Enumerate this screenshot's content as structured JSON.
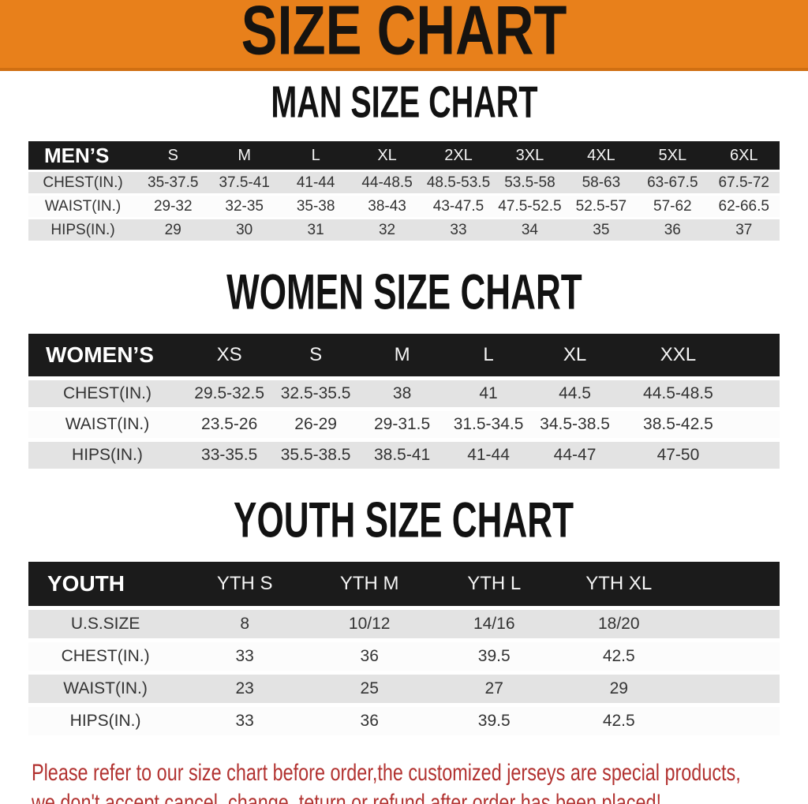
{
  "banner": {
    "title": "SIZE CHART"
  },
  "colors": {
    "banner_bg": "#E8801B",
    "table_header_bg": "#1b1b1b",
    "row_gray": "#e3e3e3",
    "row_white": "#fcfcfc",
    "disclaimer_red": "#b23230"
  },
  "sections": {
    "men": {
      "heading": "MAN SIZE CHART",
      "table": {
        "label": "MEN’S",
        "columns": [
          "S",
          "M",
          "L",
          "XL",
          "2XL",
          "3XL",
          "4XL",
          "5XL",
          "6XL"
        ],
        "rows": [
          {
            "label": "CHEST(IN.)",
            "values": [
              "35-37.5",
              "37.5-41",
              "41-44",
              "44-48.5",
              "48.5-53.5",
              "53.5-58",
              "58-63",
              "63-67.5",
              "67.5-72"
            ]
          },
          {
            "label": "WAIST(IN.)",
            "values": [
              "29-32",
              "32-35",
              "35-38",
              "38-43",
              "43-47.5",
              "47.5-52.5",
              "52.5-57",
              "57-62",
              "62-66.5"
            ]
          },
          {
            "label": "HIPS(IN.)",
            "values": [
              "29",
              "30",
              "31",
              "32",
              "33",
              "34",
              "35",
              "36",
              "37"
            ]
          }
        ]
      }
    },
    "women": {
      "heading": "WOMEN SIZE CHART",
      "table": {
        "label": "WOMEN’S",
        "columns": [
          "XS",
          "S",
          "M",
          "L",
          "XL",
          "XXL"
        ],
        "rows": [
          {
            "label": "CHEST(IN.)",
            "values": [
              "29.5-32.5",
              "32.5-35.5",
              "38",
              "41",
              "44.5",
              "44.5-48.5"
            ]
          },
          {
            "label": "WAIST(IN.)",
            "values": [
              "23.5-26",
              "26-29",
              "29-31.5",
              "31.5-34.5",
              "34.5-38.5",
              "38.5-42.5"
            ]
          },
          {
            "label": "HIPS(IN.)",
            "values": [
              "33-35.5",
              "35.5-38.5",
              "38.5-41",
              "41-44",
              "44-47",
              "47-50"
            ]
          }
        ]
      }
    },
    "youth": {
      "heading": "YOUTH SIZE CHART",
      "table": {
        "label": "YOUTH",
        "columns": [
          "YTH S",
          "YTH M",
          "YTH L",
          "YTH XL"
        ],
        "rows": [
          {
            "label": "U.S.SIZE",
            "values": [
              "8",
              "10/12",
              "14/16",
              "18/20"
            ]
          },
          {
            "label": "CHEST(IN.)",
            "values": [
              "33",
              "36",
              "39.5",
              "42.5"
            ]
          },
          {
            "label": "WAIST(IN.)",
            "values": [
              "23",
              "25",
              "27",
              "29"
            ]
          },
          {
            "label": "HIPS(IN.)",
            "values": [
              "33",
              "36",
              "39.5",
              "42.5"
            ]
          }
        ]
      }
    }
  },
  "disclaimer": {
    "line1": "Please refer to our size chart before order,the customized jerseys are special products,",
    "line2": "we don't accept cancel, change, teturn or refund after order has been placed!"
  }
}
